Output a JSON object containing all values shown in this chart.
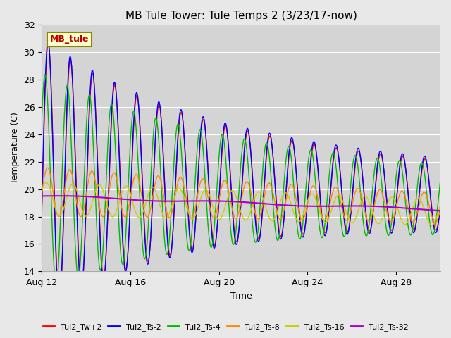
{
  "title": "MB Tule Tower: Tule Temps 2 (3/23/17-now)",
  "xlabel": "Time",
  "ylabel": "Temperature (C)",
  "ylim": [
    14,
    32
  ],
  "yticks": [
    14,
    16,
    18,
    20,
    22,
    24,
    26,
    28,
    30,
    32
  ],
  "background_color": "#e8e8e8",
  "plot_bg_color": "#d4d4d4",
  "series": [
    {
      "label": "Tul2_Tw+2",
      "color": "#ff0000"
    },
    {
      "label": "Tul2_Ts-2",
      "color": "#0000ff"
    },
    {
      "label": "Tul2_Ts-4",
      "color": "#00bb00"
    },
    {
      "label": "Tul2_Ts-8",
      "color": "#ff8800"
    },
    {
      "label": "Tul2_Ts-16",
      "color": "#cccc00"
    },
    {
      "label": "Tul2_Ts-32",
      "color": "#aa00cc"
    }
  ],
  "inset_label": "MB_tule",
  "inset_label_color": "#bb0000",
  "inset_bg": "#ffffcc",
  "inset_border": "#888800",
  "x_labels": [
    "Aug 12",
    "Aug 16",
    "Aug 20",
    "Aug 24",
    "Aug 28"
  ],
  "xtick_positions": [
    12,
    16,
    20,
    24,
    28
  ],
  "xlim": [
    12,
    30
  ]
}
